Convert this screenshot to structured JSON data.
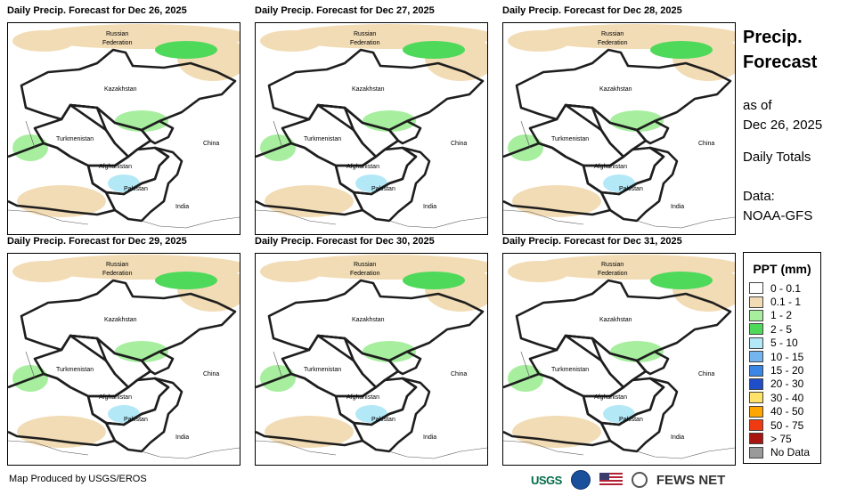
{
  "panels": [
    {
      "title": "Daily Precip. Forecast for Dec 26, 2025"
    },
    {
      "title": "Daily Precip. Forecast for Dec 27, 2025"
    },
    {
      "title": "Daily Precip. Forecast for Dec 28, 2025"
    },
    {
      "title": "Daily Precip. Forecast for Dec 29, 2025"
    },
    {
      "title": "Daily Precip. Forecast for Dec 30, 2025"
    },
    {
      "title": "Daily Precip. Forecast for Dec 31, 2025"
    }
  ],
  "map_labels": {
    "russia_1": "Russian",
    "russia_2": "Federation",
    "kazakhstan": "Kazakhstan",
    "turkmenistan": "Turkmenistan",
    "afghanistan": "Afghanistan",
    "pakistan": "Pakistan",
    "china": "China",
    "india": "India"
  },
  "side": {
    "title_line1": "Precip.",
    "title_line2": "Forecast",
    "asof_line1": "as of",
    "asof_line2": "Dec 26, 2025",
    "totals": "Daily Totals",
    "data_line1": "Data:",
    "data_line2": "NOAA-GFS"
  },
  "legend": {
    "title": "PPT (mm)",
    "items": [
      {
        "label": "0 - 0.1",
        "color": "#ffffff"
      },
      {
        "label": "0.1 - 1",
        "color": "#f2dcb5"
      },
      {
        "label": "1 - 2",
        "color": "#a7ee9f"
      },
      {
        "label": "2 - 5",
        "color": "#4ed95a"
      },
      {
        "label": "5 - 10",
        "color": "#b3e8f7"
      },
      {
        "label": "10 - 15",
        "color": "#74b4ef"
      },
      {
        "label": "15 - 20",
        "color": "#3a86e6"
      },
      {
        "label": "20 - 30",
        "color": "#1e4fc9"
      },
      {
        "label": "30 - 40",
        "color": "#ffe26a"
      },
      {
        "label": "40 - 50",
        "color": "#ffa600"
      },
      {
        "label": "50 - 75",
        "color": "#f03a12"
      },
      {
        "label": "> 75",
        "color": "#a8140f"
      },
      {
        "label": "No Data",
        "color": "#9a9a9a"
      }
    ]
  },
  "footer": {
    "credit": "Map Produced by USGS/EROS",
    "usgs": "USGS",
    "fews": "FEWS NET"
  }
}
